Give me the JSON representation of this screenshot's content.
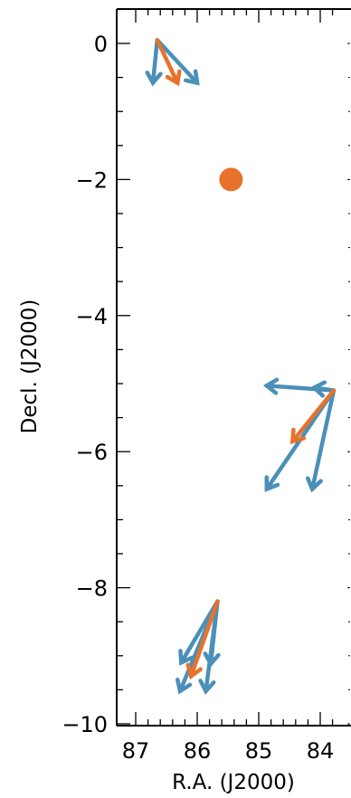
{
  "chart_data": {
    "type": "scatter",
    "title": "",
    "xlabel": "R.A.  (J2000)",
    "ylabel": "Decl.  (J2000)",
    "xlim": [
      87,
      83.7
    ],
    "ylim": [
      -10,
      0.5
    ],
    "x_ticks": [
      {
        "value": 87,
        "label": "87"
      },
      {
        "value": 86,
        "label": "86"
      },
      {
        "value": 85,
        "label": "85"
      },
      {
        "value": 84,
        "label": "84"
      }
    ],
    "y_ticks": [
      {
        "value": 0,
        "label": "0"
      },
      {
        "value": -2,
        "label": "−2"
      },
      {
        "value": -4,
        "label": "−4"
      },
      {
        "value": -6,
        "label": "−6"
      },
      {
        "value": -8,
        "label": "−8"
      },
      {
        "value": -10,
        "label": "−10"
      }
    ],
    "grid": false,
    "colors": {
      "blue": "#4a90b8",
      "orange": "#e8722c"
    },
    "point": {
      "x": 85.45,
      "y": -2.0,
      "color": "#e8722c"
    },
    "arrow_groups": [
      {
        "origin": {
          "x": 86.65,
          "y": 0.05
        },
        "arrows": [
          {
            "to_x": 86.72,
            "to_y": -0.58,
            "color": "#4a90b8"
          },
          {
            "to_x": 86.0,
            "to_y": -0.58,
            "color": "#4a90b8"
          },
          {
            "to_x": 86.32,
            "to_y": -0.58,
            "color": "#e8722c"
          }
        ]
      },
      {
        "origin": {
          "x": 83.78,
          "y": -5.1
        },
        "arrows": [
          {
            "to_x": 84.87,
            "to_y": -5.03,
            "color": "#4a90b8"
          },
          {
            "to_x": 84.1,
            "to_y": -5.06,
            "color": "#4a90b8"
          },
          {
            "to_x": 84.87,
            "to_y": -6.55,
            "color": "#4a90b8"
          },
          {
            "to_x": 84.13,
            "to_y": -6.55,
            "color": "#4a90b8"
          },
          {
            "to_x": 84.45,
            "to_y": -5.85,
            "color": "#e8722c"
          }
        ]
      },
      {
        "origin": {
          "x": 85.67,
          "y": -8.2
        },
        "arrows": [
          {
            "to_x": 86.26,
            "to_y": -9.1,
            "color": "#4a90b8"
          },
          {
            "to_x": 86.28,
            "to_y": -9.52,
            "color": "#4a90b8"
          },
          {
            "to_x": 85.86,
            "to_y": -9.52,
            "color": "#4a90b8"
          },
          {
            "to_x": 85.78,
            "to_y": -9.12,
            "color": "#4a90b8"
          },
          {
            "to_x": 86.1,
            "to_y": -9.3,
            "color": "#e8722c"
          }
        ]
      }
    ]
  }
}
